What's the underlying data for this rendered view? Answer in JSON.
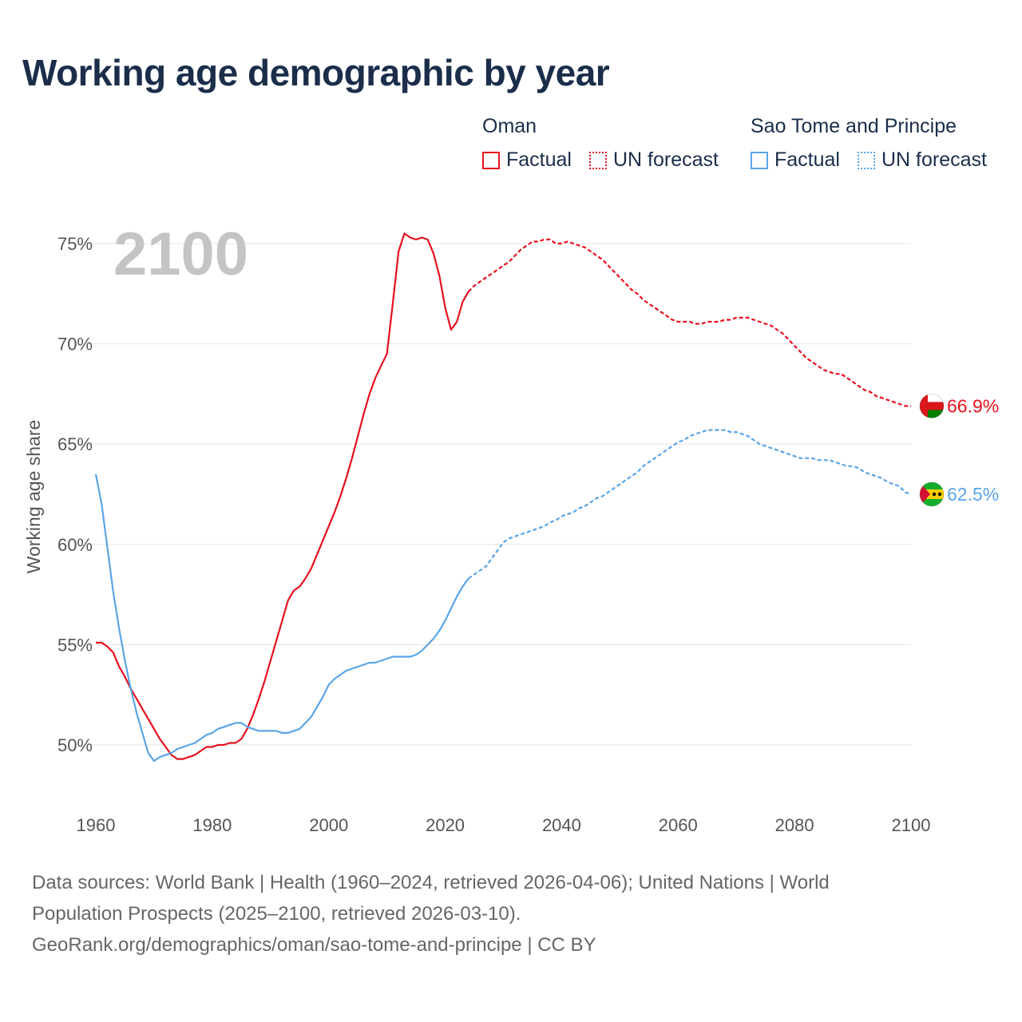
{
  "header": {
    "title": "Working age demographic by year"
  },
  "legend": {
    "groups": [
      {
        "name": "Oman",
        "color": "#e8101e",
        "factual_label": "Factual",
        "forecast_label": "UN forecast"
      },
      {
        "name": "Sao Tome and Principe",
        "color": "#5aa5e6",
        "factual_label": "Factual",
        "forecast_label": "UN forecast"
      }
    ]
  },
  "chart_data": {
    "type": "line",
    "title": "Working age demographic by year",
    "current_year_label": "2100",
    "xlabel": "",
    "ylabel": "Working age share",
    "xlim": [
      1960,
      2100
    ],
    "ylim": [
      47,
      76.5
    ],
    "x_ticks": [
      1960,
      1980,
      2000,
      2020,
      2040,
      2060,
      2080,
      2100
    ],
    "x_tick_labels": [
      "1960",
      "1980",
      "2000",
      "2020",
      "2040",
      "2060",
      "2080",
      "2100"
    ],
    "y_ticks": [
      50,
      55,
      60,
      65,
      70,
      75
    ],
    "y_tick_labels": [
      "50%",
      "55%",
      "60%",
      "65%",
      "70%",
      "75%"
    ],
    "forecast_start": 2024,
    "series": [
      {
        "name": "Oman",
        "color": "#e8101e",
        "end_label": "66.9%",
        "factual": [
          [
            1960,
            55.1
          ],
          [
            1961,
            55.1
          ],
          [
            1962,
            54.9
          ],
          [
            1963,
            54.6
          ],
          [
            1964,
            53.9
          ],
          [
            1965,
            53.4
          ],
          [
            1966,
            52.8
          ],
          [
            1967,
            52.3
          ],
          [
            1968,
            51.8
          ],
          [
            1969,
            51.3
          ],
          [
            1970,
            50.8
          ],
          [
            1971,
            50.3
          ],
          [
            1972,
            49.9
          ],
          [
            1973,
            49.5
          ],
          [
            1974,
            49.3
          ],
          [
            1975,
            49.3
          ],
          [
            1976,
            49.4
          ],
          [
            1977,
            49.5
          ],
          [
            1978,
            49.7
          ],
          [
            1979,
            49.9
          ],
          [
            1980,
            49.9
          ],
          [
            1981,
            50.0
          ],
          [
            1982,
            50.0
          ],
          [
            1983,
            50.1
          ],
          [
            1984,
            50.1
          ],
          [
            1985,
            50.3
          ],
          [
            1986,
            50.8
          ],
          [
            1987,
            51.5
          ],
          [
            1988,
            52.3
          ],
          [
            1989,
            53.2
          ],
          [
            1990,
            54.2
          ],
          [
            1991,
            55.2
          ],
          [
            1992,
            56.2
          ],
          [
            1993,
            57.2
          ],
          [
            1994,
            57.7
          ],
          [
            1995,
            57.9
          ],
          [
            1996,
            58.3
          ],
          [
            1997,
            58.8
          ],
          [
            1998,
            59.5
          ],
          [
            1999,
            60.2
          ],
          [
            2000,
            60.9
          ],
          [
            2001,
            61.6
          ],
          [
            2002,
            62.4
          ],
          [
            2003,
            63.3
          ],
          [
            2004,
            64.3
          ],
          [
            2005,
            65.4
          ],
          [
            2006,
            66.5
          ],
          [
            2007,
            67.5
          ],
          [
            2008,
            68.3
          ],
          [
            2009,
            68.9
          ],
          [
            2010,
            69.5
          ],
          [
            2011,
            72.0
          ],
          [
            2012,
            74.6
          ],
          [
            2013,
            75.5
          ],
          [
            2014,
            75.3
          ],
          [
            2015,
            75.2
          ],
          [
            2016,
            75.3
          ],
          [
            2017,
            75.2
          ],
          [
            2018,
            74.5
          ],
          [
            2019,
            73.4
          ],
          [
            2020,
            71.8
          ],
          [
            2021,
            70.7
          ],
          [
            2022,
            71.1
          ],
          [
            2023,
            72.1
          ],
          [
            2024,
            72.6
          ]
        ],
        "forecast": [
          [
            2024,
            72.6
          ],
          [
            2025,
            72.9
          ],
          [
            2026,
            73.1
          ],
          [
            2027,
            73.3
          ],
          [
            2028,
            73.5
          ],
          [
            2029,
            73.7
          ],
          [
            2030,
            73.9
          ],
          [
            2031,
            74.1
          ],
          [
            2032,
            74.4
          ],
          [
            2033,
            74.7
          ],
          [
            2034,
            74.9
          ],
          [
            2035,
            75.1
          ],
          [
            2036,
            75.1
          ],
          [
            2037,
            75.2
          ],
          [
            2038,
            75.2
          ],
          [
            2039,
            75.0
          ],
          [
            2040,
            75.0
          ],
          [
            2041,
            75.1
          ],
          [
            2042,
            75.0
          ],
          [
            2043,
            74.9
          ],
          [
            2044,
            74.8
          ],
          [
            2045,
            74.6
          ],
          [
            2046,
            74.4
          ],
          [
            2047,
            74.2
          ],
          [
            2048,
            73.9
          ],
          [
            2049,
            73.6
          ],
          [
            2050,
            73.3
          ],
          [
            2051,
            73.0
          ],
          [
            2052,
            72.7
          ],
          [
            2053,
            72.5
          ],
          [
            2054,
            72.2
          ],
          [
            2055,
            72.0
          ],
          [
            2056,
            71.8
          ],
          [
            2057,
            71.6
          ],
          [
            2058,
            71.4
          ],
          [
            2059,
            71.2
          ],
          [
            2060,
            71.1
          ],
          [
            2061,
            71.1
          ],
          [
            2062,
            71.1
          ],
          [
            2063,
            71.0
          ],
          [
            2064,
            71.0
          ],
          [
            2065,
            71.1
          ],
          [
            2066,
            71.1
          ],
          [
            2067,
            71.1
          ],
          [
            2068,
            71.2
          ],
          [
            2069,
            71.2
          ],
          [
            2070,
            71.3
          ],
          [
            2071,
            71.3
          ],
          [
            2072,
            71.3
          ],
          [
            2073,
            71.2
          ],
          [
            2074,
            71.1
          ],
          [
            2075,
            71.0
          ],
          [
            2076,
            70.9
          ],
          [
            2077,
            70.7
          ],
          [
            2078,
            70.5
          ],
          [
            2079,
            70.2
          ],
          [
            2080,
            69.9
          ],
          [
            2081,
            69.6
          ],
          [
            2082,
            69.3
          ],
          [
            2083,
            69.1
          ],
          [
            2084,
            68.9
          ],
          [
            2085,
            68.7
          ],
          [
            2086,
            68.6
          ],
          [
            2087,
            68.5
          ],
          [
            2088,
            68.5
          ],
          [
            2089,
            68.3
          ],
          [
            2090,
            68.1
          ],
          [
            2091,
            67.9
          ],
          [
            2092,
            67.7
          ],
          [
            2093,
            67.6
          ],
          [
            2094,
            67.4
          ],
          [
            2095,
            67.3
          ],
          [
            2096,
            67.2
          ],
          [
            2097,
            67.1
          ],
          [
            2098,
            67.0
          ],
          [
            2099,
            66.9
          ],
          [
            2100,
            66.9
          ]
        ]
      },
      {
        "name": "Sao Tome and Principe",
        "color": "#5aa5e6",
        "end_label": "62.5%",
        "factual": [
          [
            1960,
            63.5
          ],
          [
            1961,
            62.0
          ],
          [
            1962,
            59.8
          ],
          [
            1963,
            57.6
          ],
          [
            1964,
            55.8
          ],
          [
            1965,
            54.2
          ],
          [
            1966,
            52.8
          ],
          [
            1967,
            51.6
          ],
          [
            1968,
            50.6
          ],
          [
            1969,
            49.6
          ],
          [
            1970,
            49.2
          ],
          [
            1971,
            49.4
          ],
          [
            1972,
            49.5
          ],
          [
            1973,
            49.6
          ],
          [
            1974,
            49.8
          ],
          [
            1975,
            49.9
          ],
          [
            1976,
            50.0
          ],
          [
            1977,
            50.1
          ],
          [
            1978,
            50.3
          ],
          [
            1979,
            50.5
          ],
          [
            1980,
            50.6
          ],
          [
            1981,
            50.8
          ],
          [
            1982,
            50.9
          ],
          [
            1983,
            51.0
          ],
          [
            1984,
            51.1
          ],
          [
            1985,
            51.1
          ],
          [
            1986,
            50.9
          ],
          [
            1987,
            50.8
          ],
          [
            1988,
            50.7
          ],
          [
            1989,
            50.7
          ],
          [
            1990,
            50.7
          ],
          [
            1991,
            50.7
          ],
          [
            1992,
            50.6
          ],
          [
            1993,
            50.6
          ],
          [
            1994,
            50.7
          ],
          [
            1995,
            50.8
          ],
          [
            1996,
            51.1
          ],
          [
            1997,
            51.4
          ],
          [
            1998,
            51.9
          ],
          [
            1999,
            52.4
          ],
          [
            2000,
            53.0
          ],
          [
            2001,
            53.3
          ],
          [
            2002,
            53.5
          ],
          [
            2003,
            53.7
          ],
          [
            2004,
            53.8
          ],
          [
            2005,
            53.9
          ],
          [
            2006,
            54.0
          ],
          [
            2007,
            54.1
          ],
          [
            2008,
            54.1
          ],
          [
            2009,
            54.2
          ],
          [
            2010,
            54.3
          ],
          [
            2011,
            54.4
          ],
          [
            2012,
            54.4
          ],
          [
            2013,
            54.4
          ],
          [
            2014,
            54.4
          ],
          [
            2015,
            54.5
          ],
          [
            2016,
            54.7
          ],
          [
            2017,
            55.0
          ],
          [
            2018,
            55.3
          ],
          [
            2019,
            55.7
          ],
          [
            2020,
            56.2
          ],
          [
            2021,
            56.8
          ],
          [
            2022,
            57.4
          ],
          [
            2023,
            57.9
          ],
          [
            2024,
            58.3
          ]
        ],
        "forecast": [
          [
            2024,
            58.3
          ],
          [
            2025,
            58.5
          ],
          [
            2026,
            58.7
          ],
          [
            2027,
            58.9
          ],
          [
            2028,
            59.3
          ],
          [
            2029,
            59.7
          ],
          [
            2030,
            60.1
          ],
          [
            2031,
            60.3
          ],
          [
            2032,
            60.4
          ],
          [
            2033,
            60.5
          ],
          [
            2034,
            60.6
          ],
          [
            2035,
            60.7
          ],
          [
            2036,
            60.8
          ],
          [
            2037,
            60.9
          ],
          [
            2038,
            61.1
          ],
          [
            2039,
            61.2
          ],
          [
            2040,
            61.4
          ],
          [
            2041,
            61.5
          ],
          [
            2042,
            61.6
          ],
          [
            2043,
            61.8
          ],
          [
            2044,
            61.9
          ],
          [
            2045,
            62.1
          ],
          [
            2046,
            62.3
          ],
          [
            2047,
            62.4
          ],
          [
            2048,
            62.6
          ],
          [
            2049,
            62.8
          ],
          [
            2050,
            63.0
          ],
          [
            2051,
            63.2
          ],
          [
            2052,
            63.4
          ],
          [
            2053,
            63.6
          ],
          [
            2054,
            63.9
          ],
          [
            2055,
            64.1
          ],
          [
            2056,
            64.3
          ],
          [
            2057,
            64.5
          ],
          [
            2058,
            64.7
          ],
          [
            2059,
            64.9
          ],
          [
            2060,
            65.1
          ],
          [
            2061,
            65.2
          ],
          [
            2062,
            65.4
          ],
          [
            2063,
            65.5
          ],
          [
            2064,
            65.6
          ],
          [
            2065,
            65.7
          ],
          [
            2066,
            65.7
          ],
          [
            2067,
            65.7
          ],
          [
            2068,
            65.7
          ],
          [
            2069,
            65.6
          ],
          [
            2070,
            65.6
          ],
          [
            2071,
            65.5
          ],
          [
            2072,
            65.4
          ],
          [
            2073,
            65.2
          ],
          [
            2074,
            65.0
          ],
          [
            2075,
            64.9
          ],
          [
            2076,
            64.8
          ],
          [
            2077,
            64.7
          ],
          [
            2078,
            64.6
          ],
          [
            2079,
            64.5
          ],
          [
            2080,
            64.4
          ],
          [
            2081,
            64.3
          ],
          [
            2082,
            64.3
          ],
          [
            2083,
            64.3
          ],
          [
            2084,
            64.2
          ],
          [
            2085,
            64.2
          ],
          [
            2086,
            64.2
          ],
          [
            2087,
            64.1
          ],
          [
            2088,
            64.0
          ],
          [
            2089,
            63.9
          ],
          [
            2090,
            63.9
          ],
          [
            2091,
            63.8
          ],
          [
            2092,
            63.6
          ],
          [
            2093,
            63.5
          ],
          [
            2094,
            63.4
          ],
          [
            2095,
            63.3
          ],
          [
            2096,
            63.1
          ],
          [
            2097,
            63.0
          ],
          [
            2098,
            62.9
          ],
          [
            2099,
            62.6
          ],
          [
            2100,
            62.5
          ]
        ]
      }
    ]
  },
  "footer": {
    "line1": "Data sources: World Bank | Health (1960–2024, retrieved 2026-04-06); United Nations | World",
    "line2": "Population Prospects (2025–2100, retrieved 2026-03-10).",
    "line3": "GeoRank.org/demographics/oman/sao-tome-and-principe | CC BY"
  }
}
